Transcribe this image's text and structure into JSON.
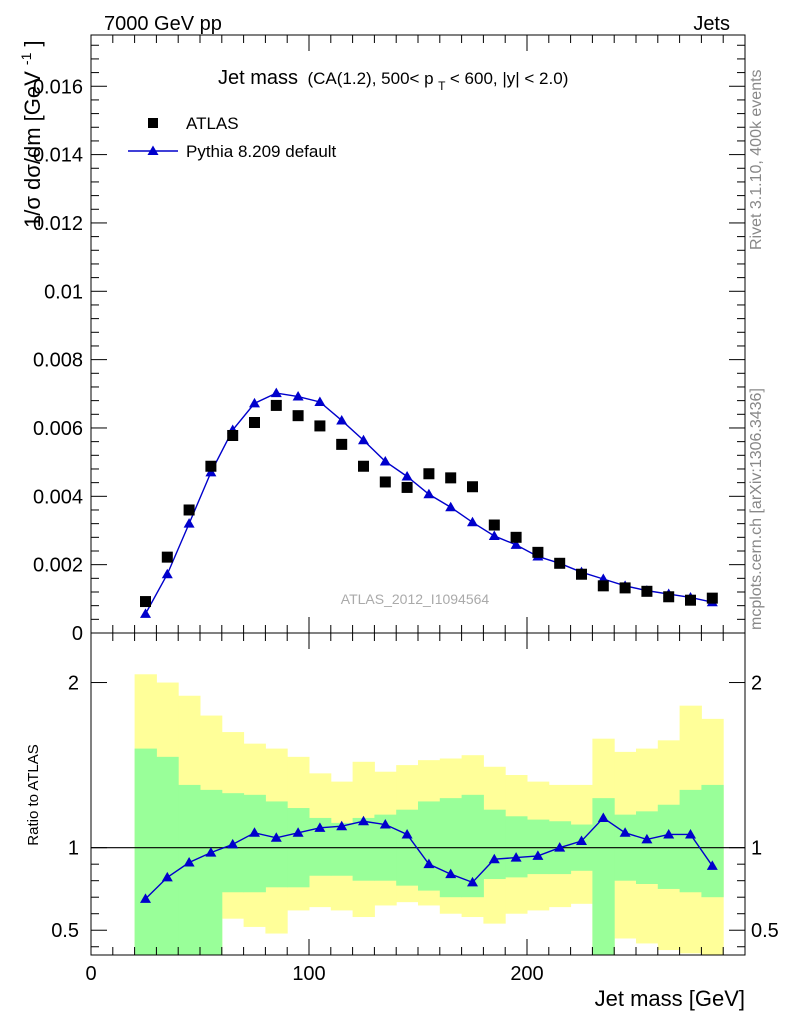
{
  "header": {
    "left": "7000 GeV pp",
    "right": "Jets"
  },
  "side_labels": {
    "rivet": "Rivet 3.1.10,  400k events",
    "mcplots": "mcplots.cern.ch [arXiv:1306.3436]"
  },
  "watermark": "ATLAS_2012_I1094564",
  "colors": {
    "data": "#000000",
    "mc": "#0000cc",
    "band_inner": "#99ff99",
    "band_outer": "#ffff99"
  },
  "chart_data": [
    {
      "type": "scatter",
      "title_main": "Jet mass",
      "title_sub_pre": "(CA(1.2), 500< p",
      "title_sub_subscript": "T",
      "title_sub_post": " < 600, |y| < 2.0)",
      "ylabel": "1/σ dσ/dm [GeV",
      "ylabel_superscript": "-1",
      "ylabel_close": "]",
      "xlim": [
        0,
        300
      ],
      "ylim": [
        0,
        0.0175
      ],
      "yticks": [
        0,
        0.002,
        0.004,
        0.006,
        0.008,
        0.01,
        0.012,
        0.014,
        0.016
      ],
      "ytick_labels": [
        "0",
        "0.002",
        "0.004",
        "0.006",
        "0.008",
        "0.01",
        "0.012",
        "0.014",
        "0.016"
      ],
      "legend_position": "top-left",
      "series": [
        {
          "name": "ATLAS",
          "marker": "square",
          "x": [
            25,
            35,
            45,
            55,
            65,
            75,
            85,
            95,
            105,
            115,
            125,
            135,
            145,
            155,
            165,
            175,
            185,
            195,
            205,
            215,
            225,
            235,
            245,
            255,
            265,
            275,
            285
          ],
          "y": [
            0.00092,
            0.00222,
            0.0036,
            0.00488,
            0.00578,
            0.00616,
            0.00666,
            0.00636,
            0.00606,
            0.00552,
            0.00488,
            0.00442,
            0.00426,
            0.00466,
            0.00454,
            0.00428,
            0.00316,
            0.0028,
            0.00236,
            0.00204,
            0.00172,
            0.00138,
            0.00132,
            0.00122,
            0.00106,
            0.00096,
            0.00102
          ]
        },
        {
          "name": "Pythia 8.209 default",
          "marker": "triangle",
          "x": [
            25,
            35,
            45,
            55,
            65,
            75,
            85,
            95,
            105,
            115,
            125,
            135,
            145,
            155,
            165,
            175,
            185,
            195,
            205,
            215,
            225,
            235,
            245,
            255,
            265,
            275,
            285
          ],
          "y": [
            0.00056,
            0.00172,
            0.0032,
            0.0047,
            0.00594,
            0.00672,
            0.00702,
            0.00692,
            0.00676,
            0.00622,
            0.00564,
            0.00502,
            0.00458,
            0.00406,
            0.00368,
            0.00324,
            0.00284,
            0.00258,
            0.00224,
            0.00204,
            0.00178,
            0.00158,
            0.00138,
            0.00124,
            0.00114,
            0.00104,
            0.0009
          ]
        }
      ]
    },
    {
      "type": "line",
      "ylabel": "Ratio to ATLAS",
      "xlabel": "Jet mass [GeV]",
      "xlim": [
        0,
        300
      ],
      "ylim": [
        0.35,
        2.3
      ],
      "xticks": [
        0,
        100,
        200
      ],
      "xtick_labels": [
        "0",
        "100",
        "200"
      ],
      "yticks": [
        0.5,
        1,
        2
      ],
      "ytick_labels": [
        "0.5",
        "1",
        "2"
      ],
      "bin_edges": [
        20,
        30,
        40,
        50,
        60,
        70,
        80,
        90,
        100,
        110,
        120,
        130,
        140,
        150,
        160,
        170,
        180,
        190,
        200,
        210,
        220,
        230,
        240,
        250,
        260,
        270,
        280,
        290
      ],
      "band_inner": {
        "lower": [
          0.35,
          0.35,
          0.35,
          0.35,
          0.73,
          0.73,
          0.76,
          0.76,
          0.83,
          0.83,
          0.8,
          0.8,
          0.77,
          0.74,
          0.7,
          0.7,
          0.81,
          0.82,
          0.84,
          0.84,
          0.86,
          0.35,
          0.8,
          0.78,
          0.75,
          0.73,
          0.7
        ],
        "upper": [
          1.6,
          1.55,
          1.38,
          1.35,
          1.33,
          1.32,
          1.28,
          1.24,
          1.18,
          1.15,
          1.18,
          1.2,
          1.23,
          1.28,
          1.3,
          1.32,
          1.23,
          1.19,
          1.17,
          1.16,
          1.14,
          1.3,
          1.2,
          1.22,
          1.26,
          1.35,
          1.38
        ]
      },
      "band_outer": {
        "lower": [
          0.35,
          0.35,
          0.35,
          0.35,
          0.57,
          0.52,
          0.48,
          0.62,
          0.64,
          0.62,
          0.58,
          0.65,
          0.67,
          0.65,
          0.6,
          0.58,
          0.54,
          0.6,
          0.62,
          0.64,
          0.66,
          0.35,
          0.45,
          0.42,
          0.38,
          0.36,
          0.35
        ],
        "upper": [
          2.05,
          2.0,
          1.92,
          1.8,
          1.7,
          1.63,
          1.6,
          1.55,
          1.45,
          1.4,
          1.52,
          1.46,
          1.5,
          1.53,
          1.54,
          1.56,
          1.49,
          1.44,
          1.4,
          1.38,
          1.38,
          1.66,
          1.58,
          1.6,
          1.65,
          1.86,
          1.78
        ]
      },
      "series": [
        {
          "name": "Pythia 8.209 default",
          "x": [
            25,
            35,
            45,
            55,
            65,
            75,
            85,
            95,
            105,
            115,
            125,
            135,
            145,
            155,
            165,
            175,
            185,
            195,
            205,
            215,
            225,
            235,
            245,
            255,
            265,
            275,
            285
          ],
          "y": [
            0.69,
            0.82,
            0.91,
            0.97,
            1.02,
            1.09,
            1.06,
            1.09,
            1.12,
            1.13,
            1.16,
            1.14,
            1.08,
            0.9,
            0.84,
            0.79,
            0.93,
            0.94,
            0.95,
            1.0,
            1.04,
            1.18,
            1.09,
            1.05,
            1.08,
            1.08,
            0.89
          ]
        }
      ]
    }
  ]
}
